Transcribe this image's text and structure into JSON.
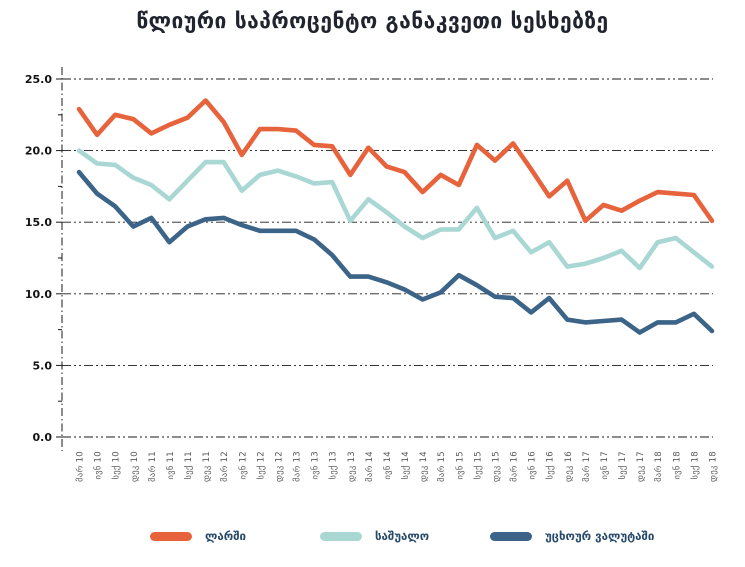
{
  "title": "წლიური საპროცენტო განაკვეთი სესხებზე",
  "chart_data": {
    "type": "line",
    "title": "წლიური საპროცენტო განაკვეთი სესხებზე",
    "categories": [
      "მარ 10",
      "ივნ 10",
      "სექ 10",
      "დეკ 10",
      "მარ 11",
      "ივნ 11",
      "სექ 11",
      "დეკ 11",
      "მარ 12",
      "ივნ 12",
      "სექ 12",
      "დეკ 12",
      "მარ 13",
      "ივნ 13",
      "სექ 13",
      "დეკ 13",
      "მარ 14",
      "ივნ 14",
      "სექ 14",
      "დეკ 14",
      "მარ 15",
      "ივნ 15",
      "სექ 15",
      "დეკ 15",
      "მარ 16",
      "ივნ 16",
      "სექ 16",
      "დეკ 16",
      "მარ 17",
      "ივნ 17",
      "სექ 17",
      "დეკ 17",
      "მარ 18",
      "ივნ 18",
      "სექ 18",
      "დეკ 18"
    ],
    "series": [
      {
        "name": "ლარში",
        "color": "#E7633C",
        "values": [
          22.9,
          21.1,
          22.5,
          22.2,
          21.2,
          21.8,
          22.3,
          23.5,
          22.0,
          19.7,
          21.5,
          21.5,
          21.4,
          20.4,
          20.3,
          18.3,
          20.2,
          18.9,
          18.5,
          17.1,
          18.3,
          17.6,
          20.4,
          19.3,
          20.5,
          18.7,
          16.8,
          17.9,
          15.1,
          16.2,
          15.8,
          16.5,
          17.1,
          17.0,
          16.9,
          15.1
        ]
      },
      {
        "name": "საშუალო",
        "color": "#A9D7D3",
        "values": [
          20.0,
          19.1,
          19.0,
          18.1,
          17.6,
          16.6,
          17.9,
          19.2,
          19.2,
          17.2,
          18.3,
          18.6,
          18.2,
          17.7,
          17.8,
          15.1,
          16.6,
          15.7,
          14.7,
          13.9,
          14.5,
          14.5,
          16.0,
          13.9,
          14.4,
          12.9,
          13.6,
          11.9,
          12.1,
          12.5,
          13.0,
          11.8,
          13.6,
          13.9,
          12.9,
          11.9
        ]
      },
      {
        "name": "უცხოურ ვალუტაში",
        "color": "#3B6488",
        "values": [
          18.5,
          17.0,
          16.1,
          14.7,
          15.3,
          13.6,
          14.7,
          15.2,
          15.3,
          14.8,
          14.4,
          14.4,
          14.4,
          13.8,
          12.7,
          11.2,
          11.2,
          10.8,
          10.3,
          9.6,
          10.1,
          11.3,
          10.6,
          9.8,
          9.7,
          8.7,
          9.7,
          8.2,
          8.0,
          8.1,
          8.2,
          7.3,
          8.0,
          8.0,
          8.6,
          7.4
        ]
      }
    ],
    "ylim": [
      0,
      25
    ],
    "yticks": [
      0,
      5,
      10,
      15,
      20,
      25
    ],
    "ytick_labels": [
      "0.0",
      "5.0",
      "10.0",
      "15.0",
      "20.0",
      "25.0"
    ],
    "grid": true,
    "gridline_style": "dash-dot",
    "legend_position": "bottom"
  },
  "colors": {
    "grid": "#1a1a1a",
    "axis": "#1a1a1a",
    "title_text": "#20242e",
    "legend_text": "#27496a",
    "ytick_text": "#141414",
    "xtick_text": "#5a5a5a",
    "background": "#ffffff"
  }
}
